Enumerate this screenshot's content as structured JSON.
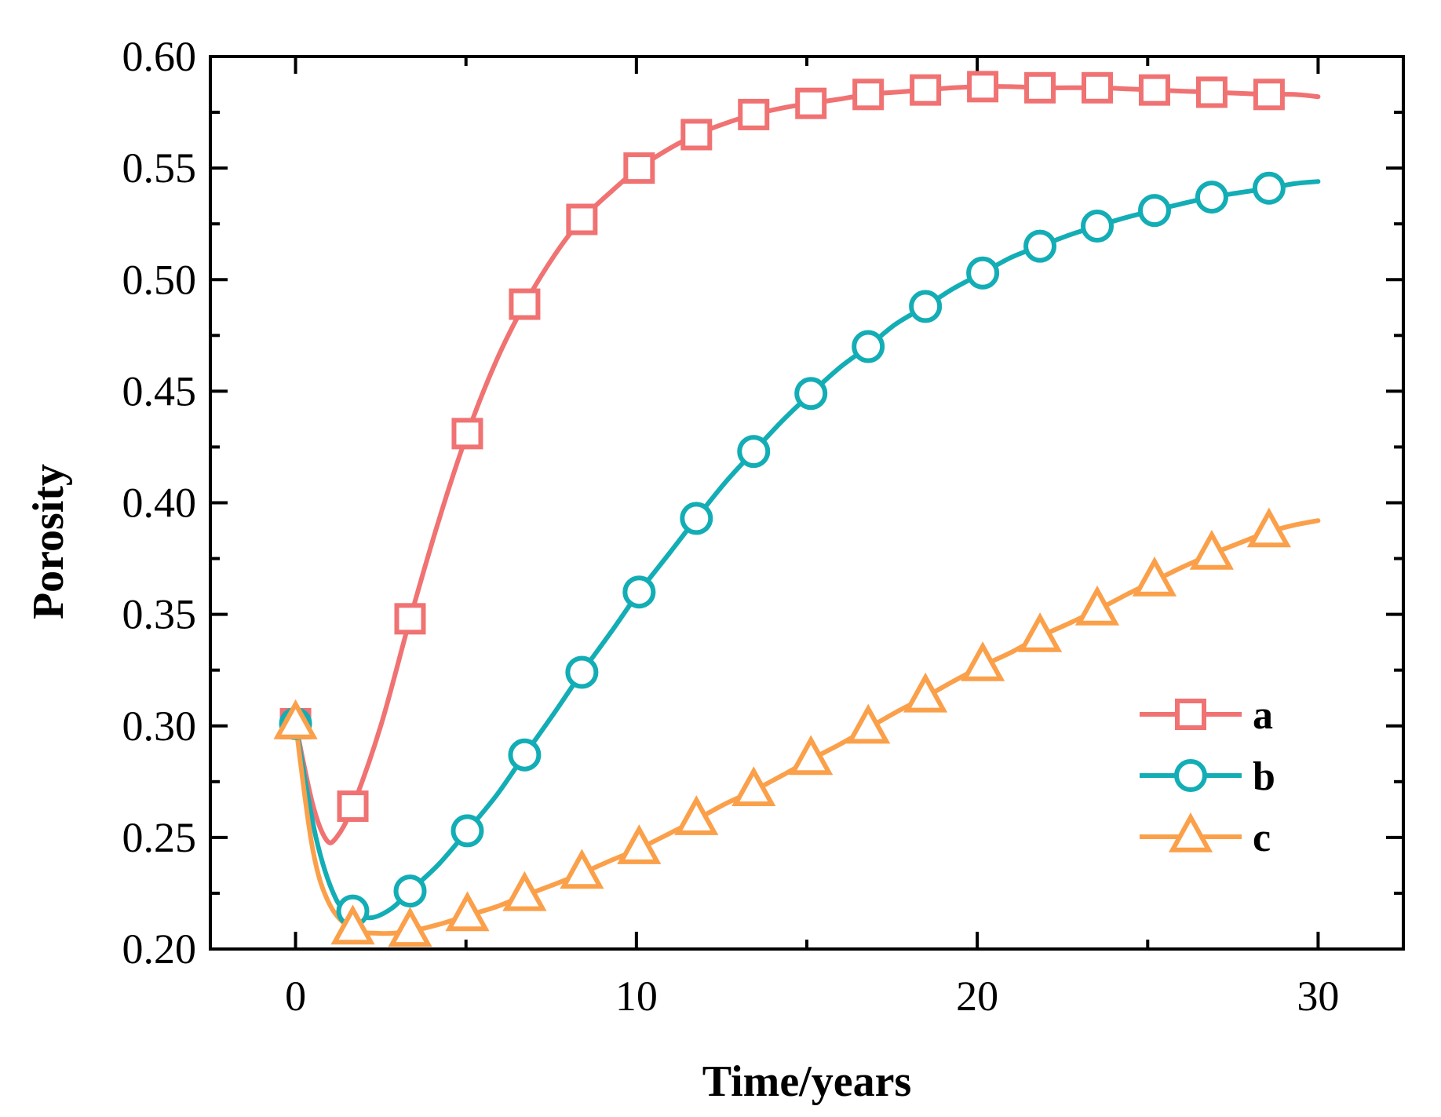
{
  "chart_data": {
    "type": "line",
    "title": "",
    "xlabel": "Time/years",
    "ylabel": "Porosity",
    "xlim": [
      -2.5,
      32.5
    ],
    "ylim": [
      0.2,
      0.6
    ],
    "xticks": [
      0,
      10,
      20,
      30
    ],
    "xtick_labels": [
      "0",
      "10",
      "20",
      "30"
    ],
    "yticks": [
      0.2,
      0.25,
      0.3,
      0.35,
      0.4,
      0.45,
      0.5,
      0.55,
      0.6
    ],
    "ytick_labels": [
      "0.20",
      "0.25",
      "0.30",
      "0.35",
      "0.40",
      "0.45",
      "0.50",
      "0.55",
      "0.60"
    ],
    "grid": false,
    "legend_position": "lower-right",
    "series": [
      {
        "name": "a",
        "color": "#F07272",
        "marker": "square",
        "x": [
          0,
          0.5,
          0.9,
          1.2,
          1.68,
          2.5,
          3.36,
          4.2,
          5.04,
          5.9,
          6.72,
          7.6,
          8.4,
          9.3,
          10.08,
          11,
          11.76,
          12.6,
          13.44,
          14.3,
          15.12,
          16.0,
          16.8,
          17.6,
          18.48,
          19.3,
          20.16,
          21.0,
          21.84,
          22.7,
          23.52,
          24.4,
          25.2,
          26.0,
          26.88,
          27.7,
          28.56,
          29.3,
          30.0
        ],
        "y": [
          0.301,
          0.265,
          0.249,
          0.25,
          0.264,
          0.3,
          0.348,
          0.392,
          0.431,
          0.464,
          0.489,
          0.511,
          0.527,
          0.54,
          0.55,
          0.559,
          0.565,
          0.57,
          0.574,
          0.577,
          0.579,
          0.581,
          0.583,
          0.584,
          0.585,
          0.586,
          0.5865,
          0.5865,
          0.586,
          0.586,
          0.586,
          0.5855,
          0.585,
          0.5845,
          0.584,
          0.5835,
          0.583,
          0.583,
          0.582
        ],
        "markers_x": [
          0,
          1.68,
          3.36,
          5.04,
          6.72,
          8.4,
          10.08,
          11.76,
          13.44,
          15.12,
          16.8,
          18.48,
          20.16,
          21.84,
          23.52,
          25.2,
          26.88,
          28.56
        ],
        "markers_y": [
          0.301,
          0.264,
          0.348,
          0.431,
          0.489,
          0.527,
          0.55,
          0.565,
          0.574,
          0.579,
          0.583,
          0.585,
          0.5865,
          0.586,
          0.586,
          0.585,
          0.584,
          0.583
        ]
      },
      {
        "name": "b",
        "color": "#13ADB5",
        "marker": "circle",
        "x": [
          0,
          0.6,
          1.2,
          1.68,
          2.2,
          2.8,
          3.36,
          4.2,
          5.04,
          5.9,
          6.72,
          7.6,
          8.4,
          9.3,
          10.08,
          11,
          11.76,
          12.6,
          13.44,
          14.3,
          15.12,
          16.0,
          16.8,
          17.6,
          18.48,
          19.3,
          20.16,
          21.0,
          21.84,
          22.7,
          23.52,
          24.4,
          25.2,
          26.0,
          26.88,
          27.7,
          28.56,
          29.3,
          30.0
        ],
        "y": [
          0.301,
          0.25,
          0.222,
          0.217,
          0.214,
          0.218,
          0.226,
          0.238,
          0.253,
          0.269,
          0.287,
          0.306,
          0.324,
          0.343,
          0.36,
          0.378,
          0.393,
          0.409,
          0.423,
          0.437,
          0.449,
          0.461,
          0.47,
          0.48,
          0.488,
          0.496,
          0.503,
          0.51,
          0.515,
          0.52,
          0.524,
          0.528,
          0.531,
          0.534,
          0.537,
          0.539,
          0.541,
          0.543,
          0.544
        ],
        "markers_x": [
          0,
          1.68,
          3.36,
          5.04,
          6.72,
          8.4,
          10.08,
          11.76,
          13.44,
          15.12,
          16.8,
          18.48,
          20.16,
          21.84,
          23.52,
          25.2,
          26.88,
          28.56
        ],
        "markers_y": [
          0.301,
          0.217,
          0.226,
          0.253,
          0.287,
          0.324,
          0.36,
          0.393,
          0.423,
          0.449,
          0.47,
          0.488,
          0.503,
          0.515,
          0.524,
          0.531,
          0.537,
          0.541
        ]
      },
      {
        "name": "c",
        "color": "#FBA04A",
        "marker": "triangle",
        "x": [
          0,
          0.5,
          1.0,
          1.68,
          2.5,
          3.36,
          4.2,
          5.04,
          5.9,
          6.72,
          7.6,
          8.4,
          9.3,
          10.08,
          11,
          11.76,
          12.6,
          13.44,
          14.3,
          15.12,
          16.0,
          16.8,
          17.6,
          18.48,
          19.3,
          20.16,
          21.0,
          21.84,
          22.7,
          23.52,
          24.4,
          25.2,
          26.0,
          26.88,
          27.7,
          28.56,
          29.3,
          30.0
        ],
        "y": [
          0.301,
          0.245,
          0.22,
          0.209,
          0.207,
          0.208,
          0.211,
          0.215,
          0.219,
          0.224,
          0.229,
          0.234,
          0.24,
          0.245,
          0.252,
          0.258,
          0.265,
          0.271,
          0.278,
          0.285,
          0.292,
          0.299,
          0.306,
          0.313,
          0.32,
          0.327,
          0.333,
          0.34,
          0.346,
          0.352,
          0.359,
          0.365,
          0.371,
          0.377,
          0.382,
          0.387,
          0.39,
          0.392
        ],
        "markers_x": [
          0,
          1.68,
          3.36,
          5.04,
          6.72,
          8.4,
          10.08,
          11.76,
          13.44,
          15.12,
          16.8,
          18.48,
          20.16,
          21.84,
          23.52,
          25.2,
          26.88,
          28.56
        ],
        "markers_y": [
          0.301,
          0.209,
          0.208,
          0.215,
          0.224,
          0.234,
          0.245,
          0.258,
          0.271,
          0.285,
          0.299,
          0.313,
          0.327,
          0.34,
          0.352,
          0.365,
          0.377,
          0.387
        ]
      }
    ]
  }
}
